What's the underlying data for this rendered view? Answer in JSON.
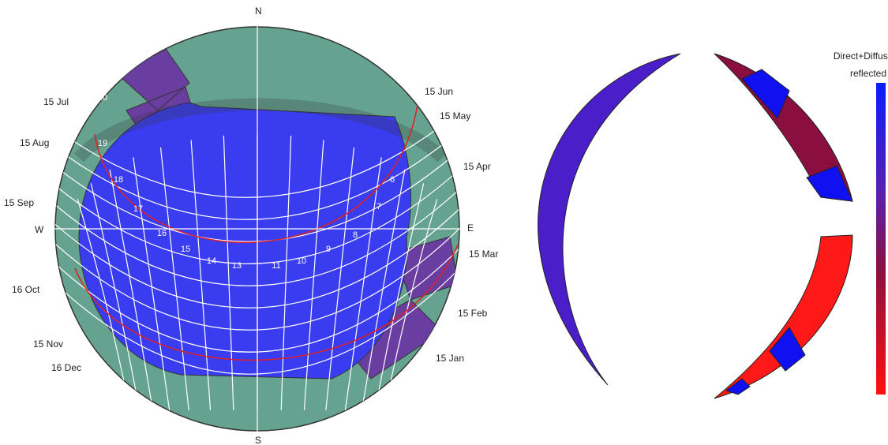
{
  "compass": {
    "north": "N",
    "south": "S",
    "west": "W",
    "east": "E"
  },
  "date_labels": [
    "15 Jul",
    "15 Aug",
    "15 Sep",
    "16 Oct",
    "15 Nov",
    "16 Dec",
    "15 Jun",
    "15 May",
    "15 Apr",
    "15 Mar",
    "15 Feb",
    "15 Jan"
  ],
  "hour_labels": [
    "20",
    "19",
    "18",
    "17",
    "16",
    "15",
    "14",
    "13",
    "11",
    "10",
    "9",
    "8",
    "7",
    "6"
  ],
  "legend": {
    "title": "Direct+Diffused",
    "subtitle": "reflected"
  }
}
